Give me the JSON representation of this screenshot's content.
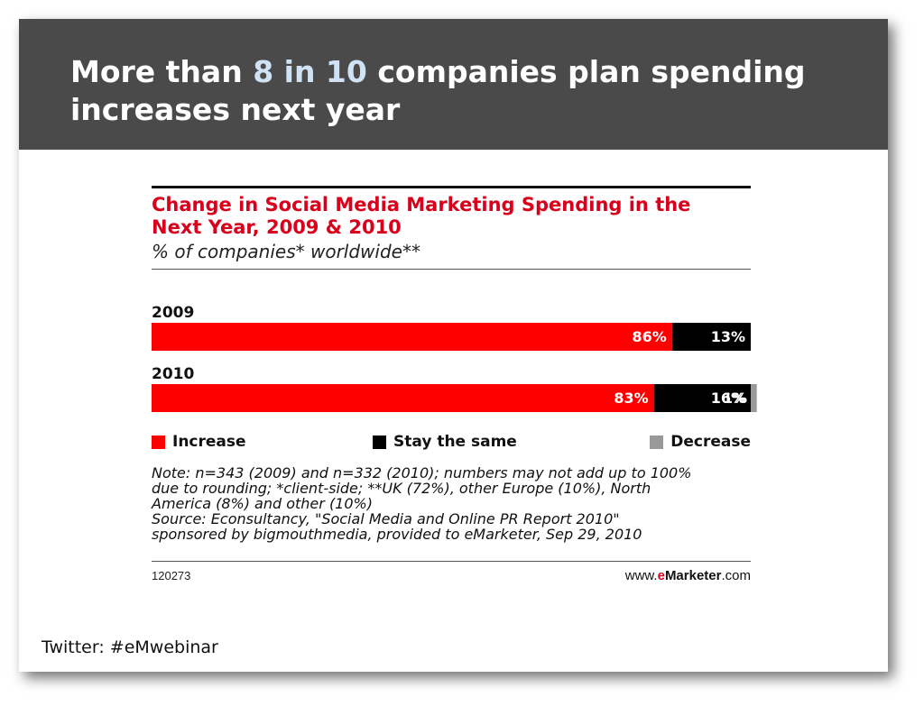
{
  "slide": {
    "headline_pre": "More than ",
    "headline_highlight": "8 in 10",
    "headline_post": " companies plan spending increases next year",
    "footer": "Twitter: #eMwebinar"
  },
  "colors": {
    "increase": "#ff0000",
    "stay_the_same": "#000000",
    "decrease": "#999999",
    "title_red": "#d9001b",
    "header_bg": "#4a4a4a"
  },
  "chart_data": {
    "type": "bar",
    "orientation": "horizontal",
    "stacked": true,
    "title": "Change in Social Media Marketing Spending in the Next Year, 2009 & 2010",
    "subtitle": "% of companies* worldwide**",
    "categories": [
      "2009",
      "2010"
    ],
    "series": [
      {
        "name": "Increase",
        "values": [
          86,
          83
        ],
        "labels": [
          "86%",
          "83%"
        ]
      },
      {
        "name": "Stay the same",
        "values": [
          13,
          16
        ],
        "labels": [
          "13%",
          "16%"
        ]
      },
      {
        "name": "Decrease",
        "values": [
          0,
          1
        ],
        "labels": [
          "",
          "1%"
        ]
      }
    ],
    "xlim": [
      0,
      99
    ],
    "legend": "bottom",
    "grid": false,
    "notes": [
      "Note: n=343 (2009) and n=332 (2010); numbers may not add up to 100%",
      "due to rounding; *client-side; **UK (72%), other Europe (10%), North",
      "America (8%) and other (10%)",
      "Source: Econsultancy, \"Social Media and Online PR Report 2010\"",
      "sponsored by bigmouthmedia, provided to eMarketer, Sep 29, 2010"
    ],
    "chart_id": "120273",
    "brand_prefix": "www.",
    "brand_e": "e",
    "brand_main": "Marketer",
    "brand_suffix": ".com"
  }
}
